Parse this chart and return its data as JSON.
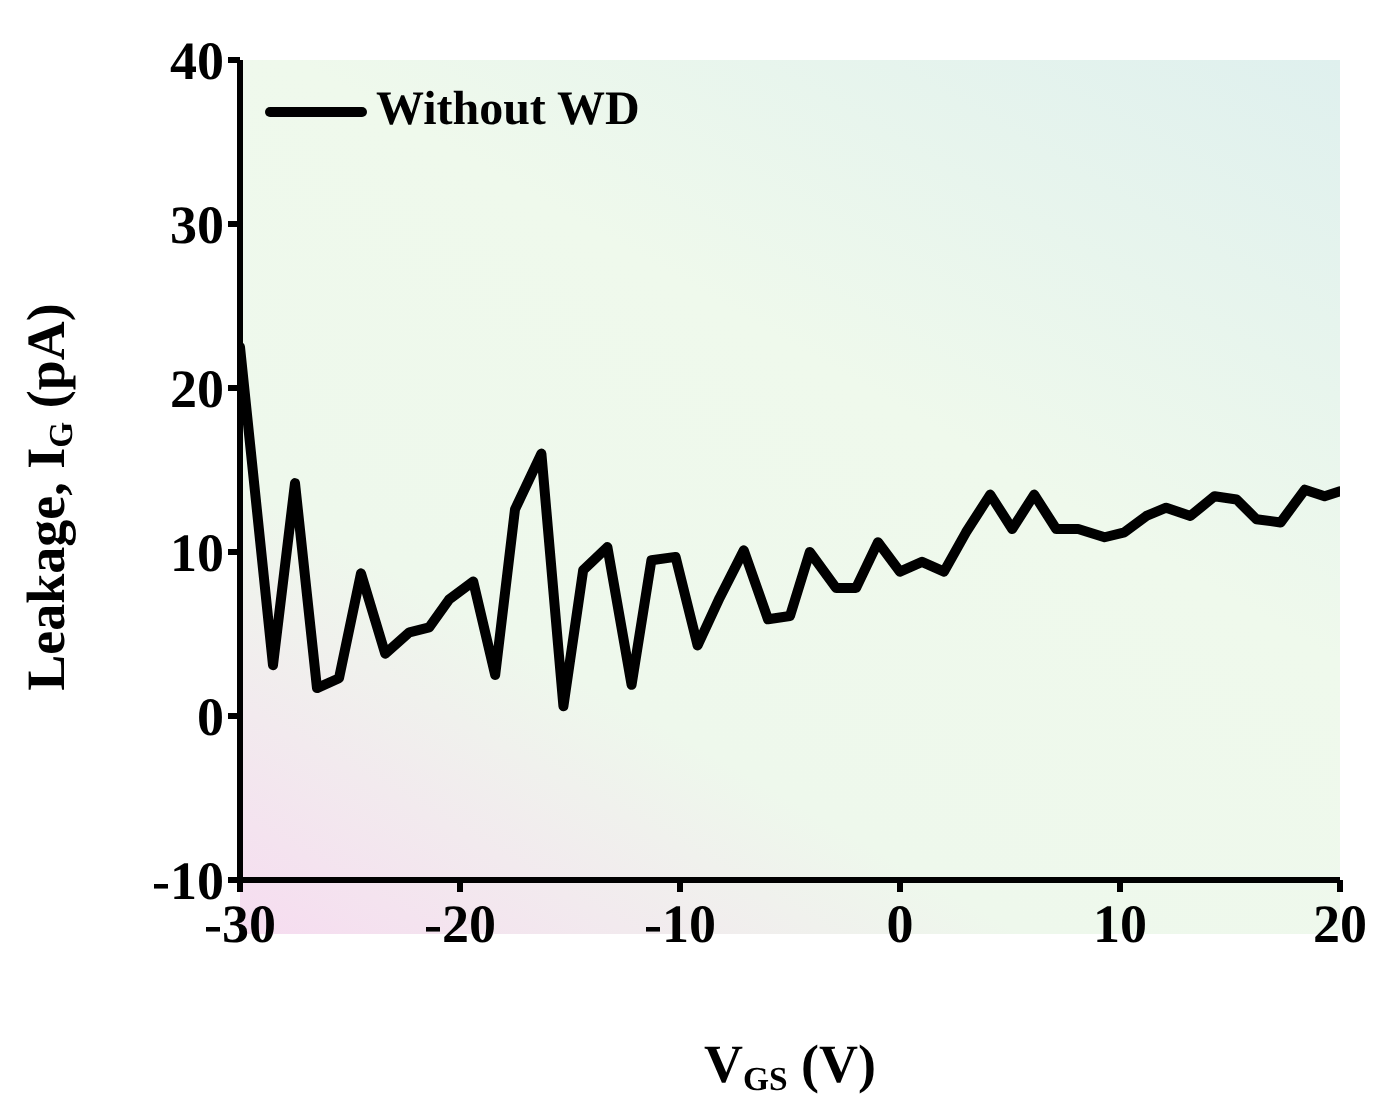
{
  "chart_data": {
    "type": "line",
    "xlabel": "V$_{GS}$ (V)",
    "ylabel": "Leakage, I$_{G}$ (pA)",
    "xlim": [
      -30,
      20
    ],
    "xticks": [
      -30,
      -20,
      -10,
      0,
      10,
      20
    ],
    "ylim": [
      -10,
      40
    ],
    "yticks": [
      -10,
      0,
      10,
      20,
      30,
      40
    ],
    "grid": false,
    "legend": "top left",
    "marker": "none",
    "line_style": "solid",
    "series": [
      {
        "name": "Without WD",
        "color": "#000000",
        "x": [
          -30,
          -28.5,
          -27.5,
          -26.5,
          -25.5,
          -24.5,
          -23.4,
          -22.3,
          -21.4,
          -20.5,
          -19.4,
          -18.4,
          -17.5,
          -16.3,
          -15.3,
          -14.4,
          -13.3,
          -12.2,
          -11.3,
          -10.2,
          -9.2,
          -8.2,
          -7.1,
          -6,
          -5,
          -4.1,
          -2.9,
          -2,
          -1,
          0,
          1,
          2,
          3,
          4.1,
          5.1,
          6.1,
          7.1,
          8.1,
          9.3,
          10.2,
          11.2,
          12.1,
          13.2,
          14.3,
          15.3,
          16.2,
          17.3,
          18.4,
          19.3,
          20
        ],
        "values": [
          22.5,
          3.1,
          14.2,
          1.7,
          2.3,
          8.7,
          3.8,
          5.1,
          5.4,
          7.1,
          8.2,
          2.5,
          12.6,
          16,
          0.6,
          8.9,
          10.3,
          1.9,
          9.5,
          9.7,
          4.3,
          7.2,
          10.1,
          5.9,
          6.1,
          10,
          7.8,
          7.8,
          10.6,
          8.8,
          9.4,
          8.8,
          11.2,
          13.5,
          11.4,
          13.5,
          11.4,
          11.4,
          10.9,
          11.2,
          12.2,
          12.7,
          12.2,
          13.4,
          13.2,
          12,
          11.8,
          13.8,
          13.4,
          13.7
        ]
      }
    ]
  }
}
